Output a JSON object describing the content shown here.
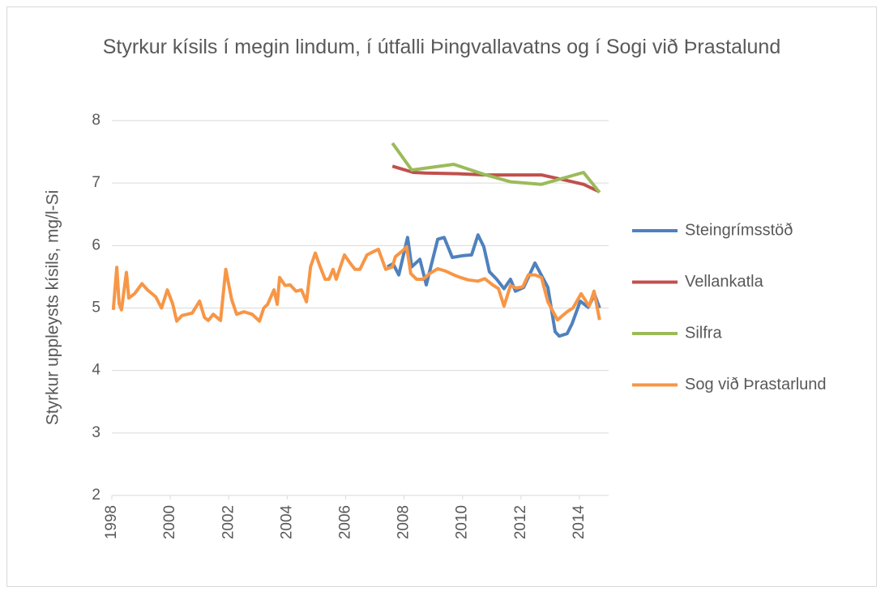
{
  "chart_data": {
    "type": "line",
    "title": "Styrkur kísils í megin lindum, í útfalli Þingvallavatns og í Sogi við Þrastalund",
    "y_label": "Styrkur uppleysts kísils, mg/l-Si",
    "xlim": [
      1998,
      2015
    ],
    "xticks": [
      1998,
      2000,
      2002,
      2004,
      2006,
      2008,
      2010,
      2012,
      2014
    ],
    "ylim": [
      2,
      8
    ],
    "yticks": [
      2,
      3,
      4,
      5,
      6,
      7,
      8
    ],
    "grid": true,
    "legend": "right",
    "series": [
      {
        "name": "Steingrímsstöð",
        "color": "#4f81bd",
        "x": [
          2007.43,
          2007.62,
          2007.82,
          2008.12,
          2008.26,
          2008.54,
          2008.76,
          2009.15,
          2009.37,
          2009.65,
          2010.03,
          2010.31,
          2010.53,
          2010.73,
          2010.92,
          2011.17,
          2011.42,
          2011.64,
          2011.81,
          2012.09,
          2012.48,
          2012.92,
          2013.17,
          2013.31,
          2013.58,
          2013.75,
          2014.03,
          2014.3,
          2014.52,
          2014.69
        ],
        "values": [
          5.66,
          5.71,
          5.53,
          6.13,
          5.66,
          5.78,
          5.37,
          6.1,
          6.13,
          5.81,
          5.84,
          5.85,
          6.17,
          5.98,
          5.58,
          5.46,
          5.31,
          5.46,
          5.27,
          5.33,
          5.72,
          5.33,
          4.62,
          4.55,
          4.59,
          4.75,
          5.11,
          5.01,
          5.22,
          5.0
        ]
      },
      {
        "name": "Vellankatla",
        "color": "#c0504d",
        "x": [
          2007.6,
          2008.32,
          2008.73,
          2009.85,
          2010.8,
          2012.7,
          2013.58,
          2014.14,
          2014.69
        ],
        "values": [
          7.27,
          7.17,
          7.16,
          7.15,
          7.13,
          7.13,
          7.04,
          6.98,
          6.86
        ]
      },
      {
        "name": "Silfra",
        "color": "#9bbb59",
        "x": [
          2007.6,
          2008.26,
          2009.7,
          2010.8,
          2011.64,
          2012.7,
          2014.14,
          2014.69
        ],
        "values": [
          7.64,
          7.21,
          7.3,
          7.13,
          7.02,
          6.98,
          7.17,
          6.85
        ]
      },
      {
        "name": "Sog við Þrastarlund",
        "color": "#f79646",
        "x": [
          1998.05,
          1998.17,
          1998.25,
          1998.33,
          1998.5,
          1998.58,
          1998.78,
          1999.03,
          1999.22,
          1999.5,
          1999.7,
          1999.9,
          2000.08,
          2000.22,
          2000.4,
          2000.75,
          2001.0,
          2001.17,
          2001.3,
          2001.47,
          2001.72,
          2001.9,
          2002.1,
          2002.27,
          2002.52,
          2002.8,
          2003.05,
          2003.2,
          2003.33,
          2003.55,
          2003.66,
          2003.74,
          2003.93,
          2004.1,
          2004.3,
          2004.49,
          2004.66,
          2004.8,
          2004.96,
          2005.13,
          2005.3,
          2005.43,
          2005.57,
          2005.68,
          2005.82,
          2005.96,
          2006.15,
          2006.32,
          2006.49,
          2006.73,
          2006.98,
          2007.12,
          2007.37,
          2007.6,
          2007.7,
          2007.93,
          2008.09,
          2008.23,
          2008.43,
          2008.65,
          2008.87,
          2009.15,
          2009.43,
          2009.7,
          2009.92,
          2010.2,
          2010.53,
          2010.76,
          2011.03,
          2011.23,
          2011.42,
          2011.64,
          2011.84,
          2012.06,
          2012.25,
          2012.48,
          2012.7,
          2012.92,
          2013.25,
          2013.58,
          2013.78,
          2014.06,
          2014.33,
          2014.5,
          2014.69
        ],
        "values": [
          4.97,
          5.65,
          5.07,
          4.97,
          5.57,
          5.16,
          5.23,
          5.39,
          5.29,
          5.18,
          5.0,
          5.29,
          5.07,
          4.79,
          4.88,
          4.92,
          5.11,
          4.85,
          4.8,
          4.9,
          4.8,
          5.62,
          5.14,
          4.9,
          4.94,
          4.9,
          4.79,
          5.0,
          5.06,
          5.29,
          5.06,
          5.49,
          5.36,
          5.37,
          5.27,
          5.29,
          5.1,
          5.66,
          5.88,
          5.66,
          5.46,
          5.46,
          5.62,
          5.46,
          5.66,
          5.85,
          5.72,
          5.62,
          5.62,
          5.85,
          5.91,
          5.94,
          5.62,
          5.66,
          5.82,
          5.91,
          5.98,
          5.55,
          5.46,
          5.46,
          5.55,
          5.63,
          5.59,
          5.53,
          5.49,
          5.45,
          5.43,
          5.47,
          5.37,
          5.31,
          5.03,
          5.36,
          5.32,
          5.34,
          5.53,
          5.53,
          5.49,
          5.1,
          4.81,
          4.94,
          5.0,
          5.23,
          5.03,
          5.27,
          4.81
        ]
      }
    ]
  }
}
